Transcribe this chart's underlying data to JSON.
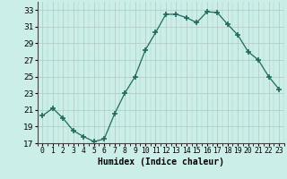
{
  "x": [
    0,
    1,
    2,
    3,
    4,
    5,
    6,
    7,
    8,
    9,
    10,
    11,
    12,
    13,
    14,
    15,
    16,
    17,
    18,
    19,
    20,
    21,
    22,
    23
  ],
  "y": [
    20.3,
    21.2,
    20.0,
    18.5,
    17.8,
    17.2,
    17.5,
    20.5,
    23.0,
    25.0,
    28.2,
    30.3,
    32.5,
    32.5,
    32.1,
    31.5,
    32.8,
    32.7,
    31.3,
    30.0,
    28.0,
    27.0,
    25.0,
    23.5
  ],
  "xlabel": "Humidex (Indice chaleur)",
  "ylim": [
    17,
    34
  ],
  "xlim": [
    -0.5,
    23.5
  ],
  "yticks": [
    17,
    19,
    21,
    23,
    25,
    27,
    29,
    31,
    33
  ],
  "line_color": "#1e6b5e",
  "marker_color": "#1e6b5e",
  "bg_color": "#cceee8",
  "grid_color": "#b0c8c4",
  "font_color": "#000000",
  "xlabel_fontsize": 7.0,
  "ytick_fontsize": 6.5,
  "xtick_fontsize": 5.8
}
